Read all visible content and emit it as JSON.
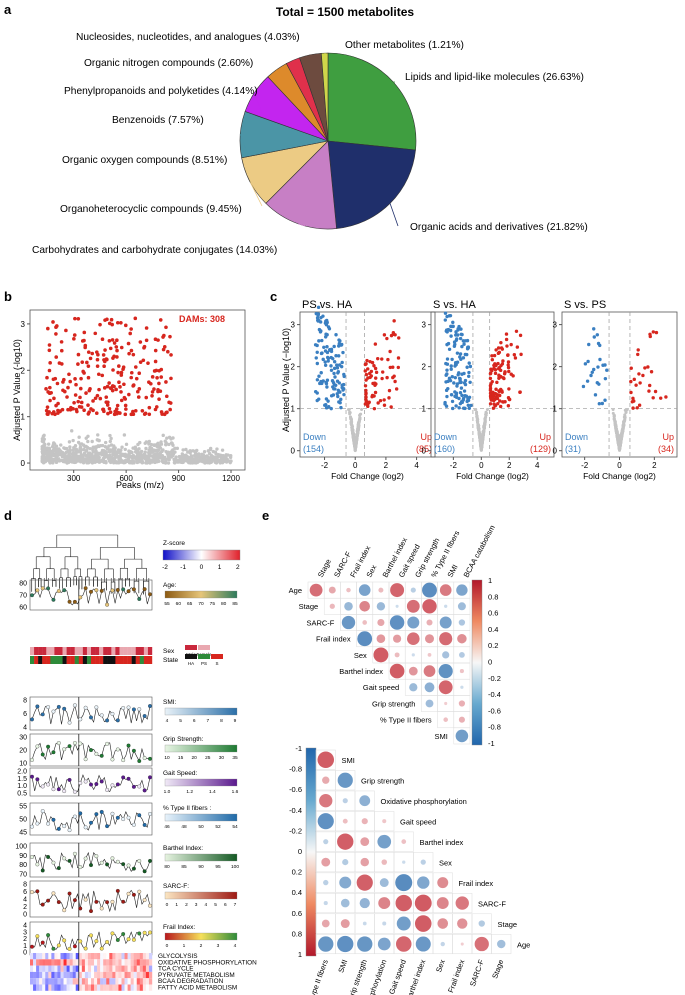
{
  "panel_labels": {
    "a": "a",
    "b": "b",
    "c": "c",
    "d": "d",
    "e": "e"
  },
  "colors": {
    "red": "#d7261e",
    "blue": "#3a7fc1",
    "grey": "#c4c4c4",
    "up": "#d7261e",
    "down": "#3a7fc1"
  },
  "chart_data": [
    {
      "id": "a",
      "type": "pie",
      "title": "Total = 1500 metabolites",
      "slices": [
        {
          "label": "Lipids and lipid-like molecules (26.63%)",
          "value": 26.63,
          "color": "#3f9e40"
        },
        {
          "label": "Organic acids and derivatives (21.82%)",
          "value": 21.82,
          "color": "#1f2f6b"
        },
        {
          "label": "Carbohydrates and carbohydrate conjugates (14.03%)",
          "value": 14.03,
          "color": "#c77fc5"
        },
        {
          "label": "Organoheterocyclic compounds (9.45%)",
          "value": 9.45,
          "color": "#eccb84"
        },
        {
          "label": "Organic oxygen compounds (8.51%)",
          "value": 8.51,
          "color": "#4b95a6"
        },
        {
          "label": "Benzenoids (7.57%)",
          "value": 7.57,
          "color": "#c325ef"
        },
        {
          "label": "Phenylpropanoids and polyketides (4.14%)",
          "value": 4.14,
          "color": "#dd8a2b"
        },
        {
          "label": "Organic nitrogen compounds (2.60%)",
          "value": 2.6,
          "color": "#e0304b"
        },
        {
          "label": "Nucleosides, nucleotides, and analogues (4.03%)",
          "value": 4.03,
          "color": "#6d4b3f"
        },
        {
          "label": "Other metabolites (1.21%)",
          "value": 1.21,
          "color": "#cfd64a"
        }
      ]
    },
    {
      "id": "b",
      "type": "scatter",
      "xlabel": "Peaks (m/z)",
      "ylabel": "Adjusted P Value (-log10)",
      "xticks": [
        "300",
        "600",
        "900",
        "1200"
      ],
      "yticks": [
        "0",
        "1",
        "2",
        "3"
      ],
      "xlim": [
        50,
        1280
      ],
      "ylim": [
        -0.15,
        3.3
      ],
      "annotation": "DAMs: 308",
      "series": [
        {
          "name": "DAMs",
          "color": "#d7261e",
          "count": 308
        },
        {
          "name": "Non-significant",
          "color": "#c4c4c4",
          "count": 1192
        }
      ]
    },
    {
      "id": "c",
      "type": "scatter",
      "ylabel": "Adjusted P Value (−log10)",
      "panels": [
        {
          "title": "PS vs. HA",
          "xlabel": "Fold Change (log2)",
          "xticks": [
            "-2",
            "0",
            "2",
            "4"
          ],
          "xlim": [
            -3.6,
            5.2
          ],
          "yticks": [
            "0",
            "1",
            "2",
            "3"
          ],
          "down_label": "Down",
          "down_count": "(154)",
          "up_label": "Up",
          "up_count": "(85)"
        },
        {
          "title": "S vs. HA",
          "xlabel": "Fold Change (log2)",
          "xticks": [
            "-2",
            "0",
            "2",
            "4"
          ],
          "xlim": [
            -3.6,
            5.2
          ],
          "yticks": [
            "0",
            "1",
            "2",
            "3"
          ],
          "down_label": "Down",
          "down_count": "(160)",
          "up_label": "Up",
          "up_count": "(129)"
        },
        {
          "title": "S vs. PS",
          "xlabel": "Fold Change (log2)",
          "xticks": [
            "-2",
            "0",
            "2"
          ],
          "xlim": [
            -3.3,
            3.3
          ],
          "yticks": [
            "0",
            "1",
            "2",
            "3"
          ],
          "down_label": "Down",
          "down_count": "(31)",
          "up_label": "Up",
          "up_count": "(34)"
        }
      ]
    },
    {
      "id": "d",
      "type": "heatmap",
      "zscore_label": "Z-score",
      "zscore_ticks": [
        "-2",
        "-1",
        "0",
        "1",
        "2"
      ],
      "tracks": [
        {
          "name": "Age:",
          "yticks": [
            "80",
            "70",
            "60"
          ],
          "legend_ticks": [
            "55",
            "60",
            "65",
            "70",
            "75",
            "80",
            "85"
          ],
          "colors": [
            "#8c5a12",
            "#e6c57a",
            "#2d7a5c"
          ]
        },
        {
          "name": "Sex",
          "legend_items": [
            "Male",
            "Female"
          ]
        },
        {
          "name": "State",
          "legend_items": [
            "HA",
            "PS",
            "S"
          ]
        },
        {
          "name": "SMI:",
          "yticks": [
            "8",
            "6",
            "4"
          ],
          "legend_ticks": [
            "4",
            "5",
            "6",
            "7",
            "8",
            "9"
          ],
          "colors": [
            "#e9f2f8",
            "#2b6fa8"
          ]
        },
        {
          "name": "Grip Strength:",
          "yticks": [
            "30",
            "20",
            "10"
          ],
          "legend_ticks": [
            "10",
            "15",
            "20",
            "25",
            "30",
            "35"
          ],
          "colors": [
            "#e8f5e4",
            "#1e7a32"
          ]
        },
        {
          "name": "Gait Speed:",
          "yticks": [
            "2.0",
            "1.5",
            "1.0",
            "0.5"
          ],
          "legend_ticks": [
            "1.0",
            "1.2",
            "1.4",
            "1.6"
          ],
          "colors": [
            "#f0e9f6",
            "#5b1a8e"
          ]
        },
        {
          "name": "% Type II fibers :",
          "yticks": [
            "55",
            "50",
            "45"
          ],
          "legend_ticks": [
            "46",
            "48",
            "50",
            "52",
            "54"
          ],
          "colors": [
            "#e8f3fb",
            "#1f6aa8"
          ]
        },
        {
          "name": "Barthel Index:",
          "yticks": [
            "100",
            "90",
            "80",
            "70"
          ],
          "legend_ticks": [
            "80",
            "85",
            "90",
            "95",
            "100"
          ],
          "colors": [
            "#e6f3e0",
            "#145a24"
          ]
        },
        {
          "name": "SARC-F:",
          "yticks": [
            "8",
            "6",
            "4",
            "2",
            "0"
          ],
          "legend_ticks": [
            "0",
            "1",
            "2",
            "3",
            "4",
            "5",
            "6",
            "7"
          ],
          "colors": [
            "#fbe6c2",
            "#9e1a14"
          ]
        },
        {
          "name": "Frail Index:",
          "yticks": [
            "4",
            "3",
            "2",
            "1",
            "0"
          ],
          "legend_ticks": [
            "0",
            "1",
            "2",
            "3",
            "4"
          ],
          "colors": [
            "#b8171c",
            "#f6e05a",
            "#2e8b3a"
          ]
        }
      ],
      "pathways": [
        "GLYCOLYSIS",
        "OXIDATIVE PHOSPHORYLATION",
        "TCA CYCLE",
        "PYRUVATE METABOLISM",
        "BCAA DEGRADATION",
        "FATTY ACID METABOLISM"
      ]
    },
    {
      "id": "e",
      "type": "heatmap",
      "upper": {
        "col_labels": [
          "Stage",
          "SARC-F",
          "Frail index",
          "Sex",
          "Barthel index",
          "Gait speed",
          "Grip strength",
          "% Type II fibers",
          "SMI",
          "BCAA catabolism"
        ],
        "row_labels": [
          "Age",
          "Stage",
          "SARC-F",
          "Frail index",
          "Sex",
          "Barthel index",
          "Gait speed",
          "Grip strength",
          "% Type II fibers",
          "SMI"
        ],
        "colorbar_ticks": [
          "1",
          "0.8",
          "0.6",
          "0.4",
          "0.2",
          "0",
          "-0.2",
          "-0.4",
          "-0.6",
          "-0.8",
          "-1"
        ]
      },
      "lower": {
        "row_labels": [
          "SMI",
          "Grip strength",
          "Oxidative phosphorylation",
          "Gait speed",
          "Barthel index",
          "Sex",
          "Frail index",
          "SARC-F",
          "Stage",
          "Age"
        ],
        "col_labels": [
          "% Type II fibers",
          "SMI",
          "Grip strength",
          "Oxidative phosphorylation",
          "Gait speed",
          "Barthel index",
          "Sex",
          "Frail index",
          "SARC-F",
          "Stage"
        ],
        "colorbar_ticks": [
          "-1",
          "-0.8",
          "-0.6",
          "-0.4",
          "-0.2",
          "0",
          "0.2",
          "0.4",
          "0.6",
          "0.8",
          "1"
        ]
      }
    }
  ]
}
